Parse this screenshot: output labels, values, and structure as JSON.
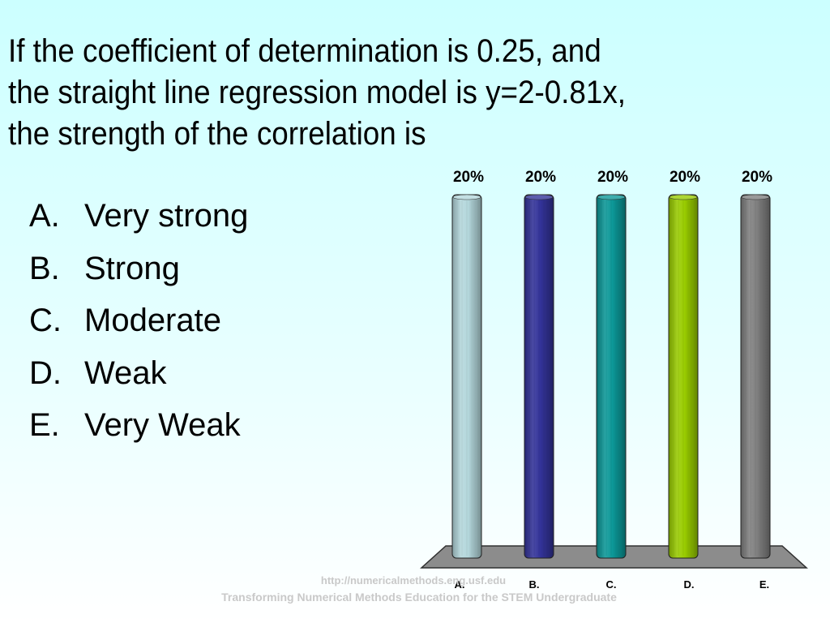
{
  "slide": {
    "question_lines": [
      "If the coefficient of determination is 0.25, and",
      "the straight line regression model is y=2-0.81x,",
      "the strength of the correlation is"
    ],
    "options": [
      {
        "letter": "A.",
        "text": "Very strong"
      },
      {
        "letter": "B.",
        "text": "Strong"
      },
      {
        "letter": "C.",
        "text": "Moderate"
      },
      {
        "letter": "D.",
        "text": "Weak"
      },
      {
        "letter": "E.",
        "text": "Very Weak"
      }
    ],
    "footer_url": "http://numericalmethods.eng.usf.edu",
    "footer_tagline": "Transforming Numerical Methods Education for the STEM Undergraduate"
  },
  "chart_data": {
    "type": "bar",
    "categories": [
      "A.",
      "B.",
      "C.",
      "D.",
      "E."
    ],
    "values": [
      20,
      20,
      20,
      20,
      20
    ],
    "value_labels": [
      "20%",
      "20%",
      "20%",
      "20%",
      "20%"
    ],
    "colors": [
      "#b4d7dc",
      "#333399",
      "#0c9898",
      "#99cc00",
      "#808080"
    ],
    "ylim": [
      0,
      20
    ],
    "grid": false,
    "legend": "none"
  }
}
